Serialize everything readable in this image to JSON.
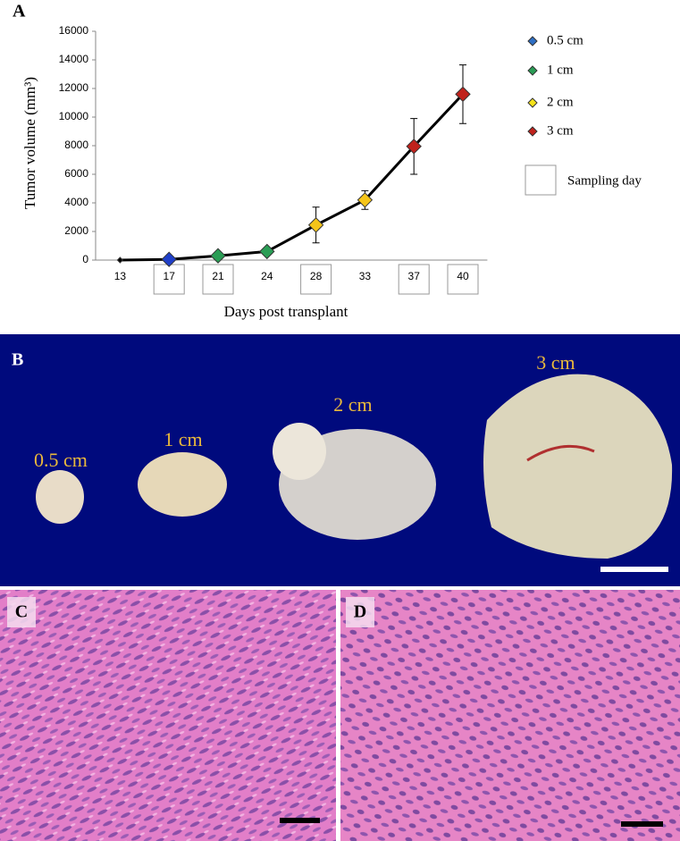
{
  "panel_labels": [
    "A",
    "B",
    "C",
    "D"
  ],
  "chart_data": {
    "type": "line",
    "xlabel": "Days post transplant",
    "ylabel": "Tumor volume (mm³)",
    "categories": [
      "13",
      "17",
      "21",
      "24",
      "28",
      "33",
      "37",
      "40"
    ],
    "values": [
      0,
      50,
      300,
      600,
      2450,
      4200,
      7950,
      11600
    ],
    "errors": [
      null,
      null,
      null,
      null,
      1250,
      650,
      1950,
      2050
    ],
    "marker_colors": [
      "#000000",
      "#1f3fc8",
      "#2a9d55",
      "#2a9d55",
      "#f5c518",
      "#f5c518",
      "#c0221c",
      "#c0221c"
    ],
    "sampled": [
      false,
      true,
      true,
      false,
      true,
      false,
      true,
      true
    ],
    "line_color": "#000000",
    "ylim": [
      0,
      16000
    ],
    "yticks": [
      0,
      2000,
      4000,
      6000,
      8000,
      10000,
      12000,
      14000,
      16000
    ],
    "grid": false,
    "legend": [
      {
        "name": "0.5 cm",
        "color": "#2e6fc4"
      },
      {
        "name": "1 cm",
        "color": "#2a9d55"
      },
      {
        "name": "2 cm",
        "color": "#f5e31a"
      },
      {
        "name": "3 cm",
        "color": "#c0221c"
      }
    ],
    "sampling_label": "Sampling day"
  },
  "photo_labels": [
    "0.5 cm",
    "1 cm",
    "2 cm",
    "3 cm"
  ]
}
